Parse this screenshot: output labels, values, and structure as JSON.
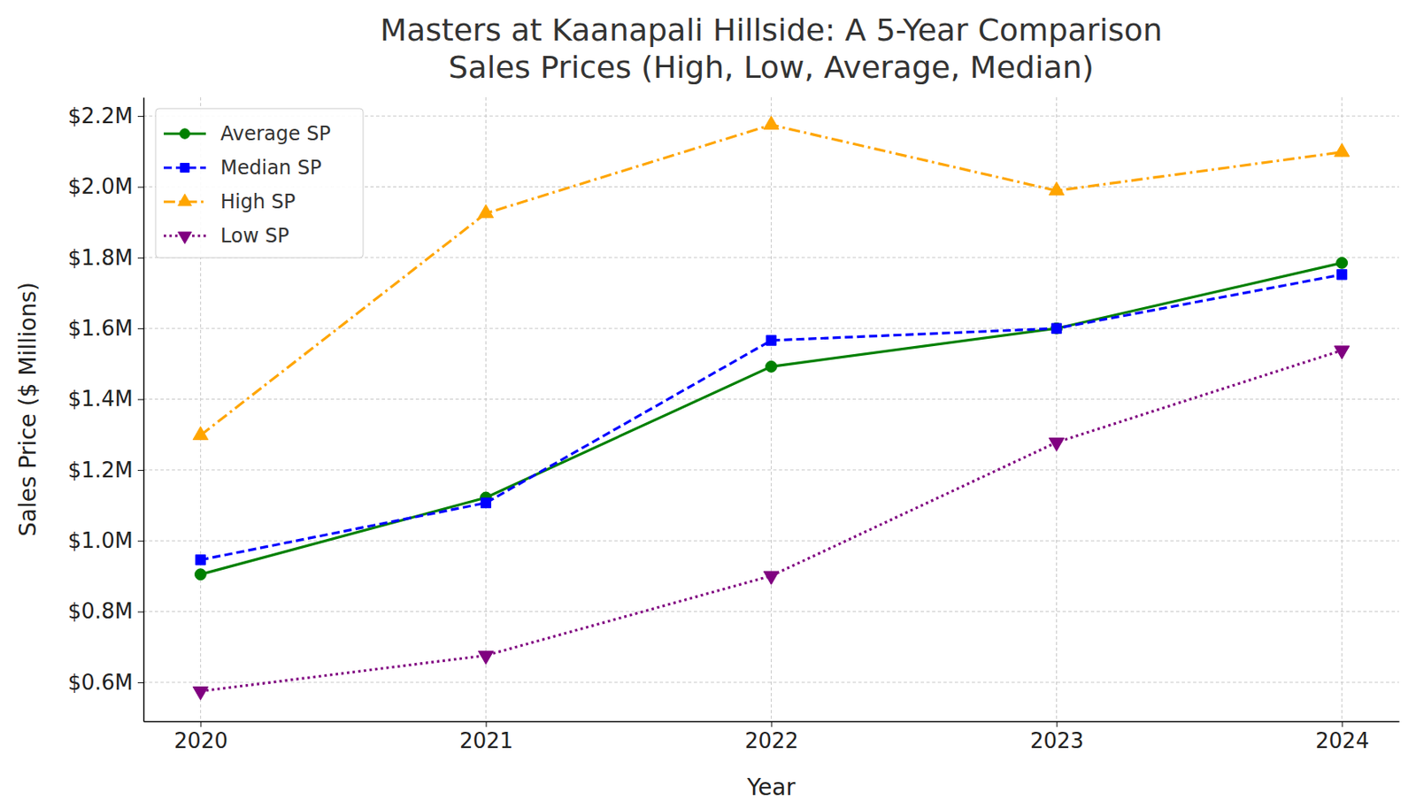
{
  "chart_data": {
    "type": "line",
    "title": "Masters at Kaanapali Hillside: A 5-Year Comparison\nSales Prices (High, Low, Average, Median)",
    "x_label": "Year",
    "y_label": "Sales Price ($ Millions)",
    "categories": [
      "2020",
      "2021",
      "2022",
      "2023",
      "2024"
    ],
    "series": [
      {
        "name": "Average SP",
        "color": "#008000",
        "marker": "circle",
        "line_style": "solid",
        "values": [
          0.905,
          1.122,
          1.492,
          1.6,
          1.785
        ]
      },
      {
        "name": "Median SP",
        "color": "#0000ff",
        "marker": "square",
        "line_style": "dashed",
        "values": [
          0.946,
          1.107,
          1.566,
          1.6,
          1.752
        ]
      },
      {
        "name": "High SP",
        "color": "#ffa500",
        "marker": "triangle-up",
        "line_style": "dashdot",
        "values": [
          1.298,
          1.925,
          2.175,
          1.989,
          2.098
        ]
      },
      {
        "name": "Low SP",
        "color": "#800080",
        "marker": "triangle-down",
        "line_style": "dotted",
        "values": [
          0.575,
          0.676,
          0.901,
          1.278,
          1.538
        ]
      }
    ],
    "ylim": [
      0.49,
      2.253
    ],
    "yticks": [
      {
        "value": 0.6,
        "label": "$0.6M"
      },
      {
        "value": 0.8,
        "label": "$0.8M"
      },
      {
        "value": 1.0,
        "label": "$1.0M"
      },
      {
        "value": 1.2,
        "label": "$1.2M"
      },
      {
        "value": 1.4,
        "label": "$1.4M"
      },
      {
        "value": 1.6,
        "label": "$1.6M"
      },
      {
        "value": 1.8,
        "label": "$1.8M"
      },
      {
        "value": 2.0,
        "label": "$2.0M"
      },
      {
        "value": 2.2,
        "label": "$2.2M"
      }
    ],
    "grid": true,
    "legend": "upper left"
  }
}
